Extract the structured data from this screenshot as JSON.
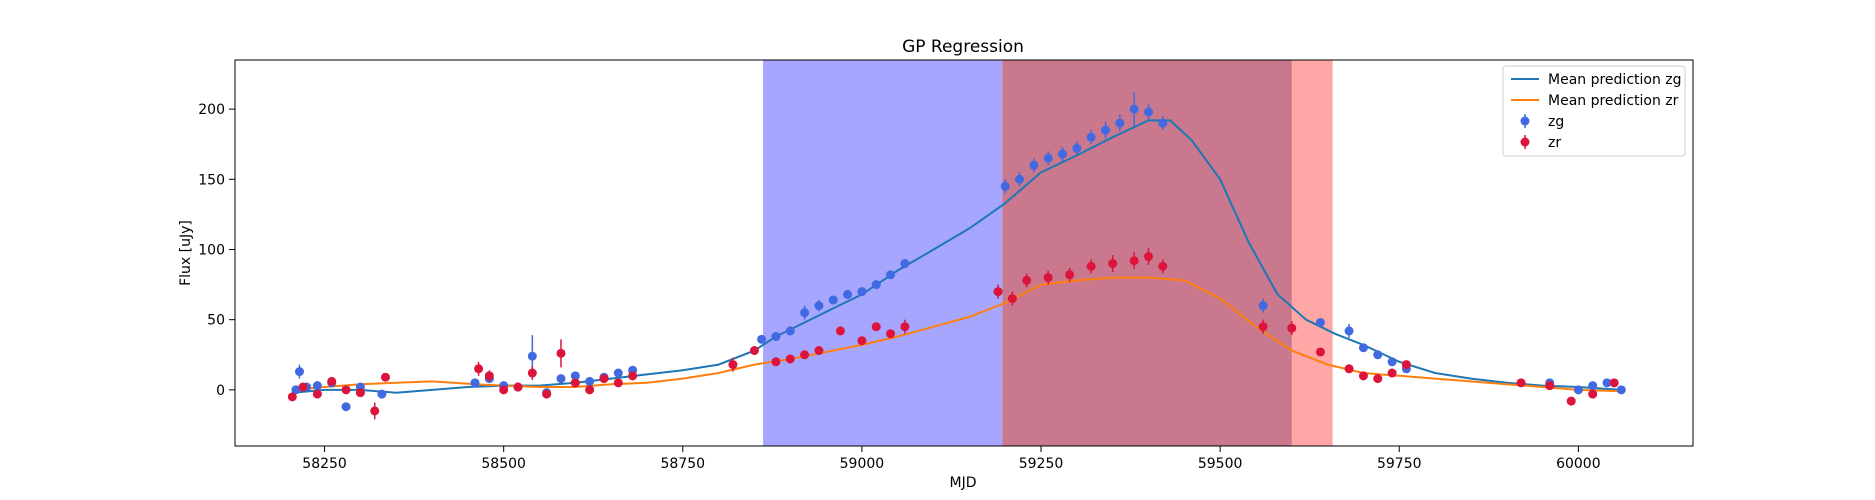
{
  "chart_data": {
    "type": "scatter",
    "title": "GP Regression",
    "xlabel": "MJD",
    "ylabel": "Flux [uJy]",
    "xlim": [
      58125,
      60160
    ],
    "ylim": [
      -40,
      235
    ],
    "xticks": [
      58250,
      58500,
      58750,
      59000,
      59250,
      59500,
      59750,
      60000
    ],
    "yticks": [
      0,
      50,
      100,
      150,
      200
    ],
    "legend_position": "top-right",
    "shaded_regions": [
      {
        "x0": 58862,
        "x1": 59196,
        "color": "#0000ff",
        "opacity": 0.35
      },
      {
        "x0": 59196,
        "x1": 59600,
        "color": "#c0607a",
        "opacity": 0.85
      },
      {
        "x0": 59600,
        "x1": 59657,
        "color": "#ff0000",
        "opacity": 0.35
      }
    ],
    "legend": [
      {
        "label": "Mean prediction zg",
        "kind": "line",
        "color": "#1f77b4"
      },
      {
        "label": "Mean prediction zr",
        "kind": "line",
        "color": "#ff7f0e"
      },
      {
        "label": "zg",
        "kind": "errorbar",
        "color": "#4169e1"
      },
      {
        "label": "zr",
        "kind": "errorbar",
        "color": "#dc143c"
      }
    ],
    "series": [
      {
        "name": "Mean prediction zg",
        "kind": "line",
        "color": "#1f77b4",
        "x": [
          58205,
          58250,
          58300,
          58350,
          58400,
          58450,
          58500,
          58550,
          58600,
          58650,
          58700,
          58750,
          58800,
          58850,
          58880,
          58920,
          58960,
          59000,
          59050,
          59100,
          59150,
          59200,
          59250,
          59300,
          59350,
          59400,
          59430,
          59460,
          59500,
          59540,
          59580,
          59620,
          59660,
          59700,
          59750,
          59800,
          59850,
          59900,
          59950,
          60000,
          60060
        ],
        "y": [
          -2,
          0,
          0,
          -2,
          0,
          2,
          3,
          3,
          5,
          8,
          11,
          14,
          18,
          28,
          38,
          48,
          58,
          68,
          85,
          100,
          115,
          133,
          155,
          167,
          180,
          192,
          192,
          178,
          150,
          105,
          68,
          50,
          40,
          32,
          20,
          12,
          8,
          5,
          3,
          2,
          0
        ]
      },
      {
        "name": "Mean prediction zr",
        "kind": "line",
        "color": "#ff7f0e",
        "x": [
          58205,
          58250,
          58300,
          58350,
          58400,
          58430,
          58460,
          58500,
          58550,
          58600,
          58650,
          58700,
          58750,
          58800,
          58850,
          58900,
          58950,
          59000,
          59050,
          59100,
          59150,
          59200,
          59250,
          59300,
          59350,
          59400,
          59450,
          59500,
          59550,
          59600,
          59650,
          59700,
          59750,
          59800,
          59850,
          59900,
          59950,
          60000,
          60060
        ],
        "y": [
          0,
          2,
          4,
          5,
          6,
          5,
          4,
          3,
          2,
          2,
          4,
          5,
          8,
          12,
          18,
          22,
          27,
          32,
          38,
          45,
          52,
          62,
          75,
          78,
          80,
          80,
          78,
          65,
          45,
          28,
          18,
          12,
          10,
          8,
          6,
          4,
          2,
          0,
          -1
        ]
      },
      {
        "name": "zg",
        "kind": "errorbar",
        "color": "#4169e1",
        "x": [
          58210,
          58215,
          58225,
          58240,
          58260,
          58280,
          58300,
          58330,
          58460,
          58480,
          58500,
          58520,
          58540,
          58560,
          58580,
          58600,
          58620,
          58640,
          58660,
          58680,
          58860,
          58880,
          58900,
          58920,
          58940,
          58960,
          58980,
          59000,
          59020,
          59040,
          59060,
          59200,
          59220,
          59240,
          59260,
          59280,
          59300,
          59320,
          59340,
          59360,
          59380,
          59400,
          59420,
          59560,
          59640,
          59680,
          59700,
          59720,
          59740,
          59760,
          59960,
          60000,
          60020,
          60040,
          60060
        ],
        "y": [
          0,
          13,
          2,
          3,
          5,
          -12,
          2,
          -3,
          5,
          8,
          3,
          2,
          24,
          -2,
          8,
          10,
          6,
          9,
          12,
          14,
          36,
          38,
          42,
          55,
          60,
          64,
          68,
          70,
          75,
          82,
          90,
          145,
          150,
          160,
          165,
          168,
          172,
          180,
          185,
          190,
          200,
          198,
          190,
          60,
          48,
          42,
          30,
          25,
          20,
          15,
          5,
          0,
          3,
          5,
          0
        ],
        "yerr": [
          3,
          5,
          3,
          3,
          3,
          3,
          3,
          3,
          3,
          3,
          3,
          3,
          15,
          3,
          3,
          3,
          3,
          3,
          3,
          3,
          3,
          3,
          3,
          5,
          4,
          3,
          3,
          3,
          3,
          3,
          3,
          5,
          5,
          5,
          5,
          5,
          5,
          5,
          6,
          6,
          12,
          6,
          5,
          5,
          3,
          5,
          3,
          3,
          3,
          3,
          3,
          3,
          3,
          3,
          3
        ]
      },
      {
        "name": "zr",
        "kind": "errorbar",
        "color": "#dc143c",
        "x": [
          58205,
          58220,
          58240,
          58260,
          58280,
          58300,
          58320,
          58335,
          58465,
          58480,
          58500,
          58520,
          58540,
          58560,
          58580,
          58600,
          58620,
          58640,
          58660,
          58680,
          58820,
          58850,
          58880,
          58900,
          58920,
          58940,
          58970,
          59000,
          59020,
          59040,
          59060,
          59190,
          59210,
          59230,
          59260,
          59290,
          59320,
          59350,
          59380,
          59400,
          59420,
          59560,
          59600,
          59640,
          59680,
          59700,
          59720,
          59740,
          59760,
          59920,
          59960,
          59990,
          60020,
          60050
        ],
        "y": [
          -5,
          2,
          -3,
          6,
          0,
          -2,
          -15,
          9,
          15,
          10,
          0,
          2,
          12,
          -3,
          26,
          5,
          0,
          8,
          5,
          10,
          18,
          28,
          20,
          22,
          25,
          28,
          42,
          35,
          45,
          40,
          45,
          70,
          65,
          78,
          80,
          82,
          88,
          90,
          92,
          95,
          88,
          45,
          44,
          27,
          15,
          10,
          8,
          12,
          18,
          5,
          3,
          -8,
          -3,
          5
        ],
        "yerr": [
          3,
          3,
          3,
          3,
          3,
          3,
          6,
          3,
          5,
          4,
          3,
          3,
          5,
          3,
          10,
          3,
          3,
          3,
          3,
          3,
          5,
          3,
          3,
          3,
          3,
          3,
          3,
          3,
          3,
          3,
          5,
          5,
          5,
          5,
          5,
          5,
          5,
          6,
          6,
          6,
          5,
          5,
          5,
          3,
          3,
          3,
          3,
          3,
          3,
          3,
          3,
          3,
          3,
          3
        ]
      }
    ]
  }
}
